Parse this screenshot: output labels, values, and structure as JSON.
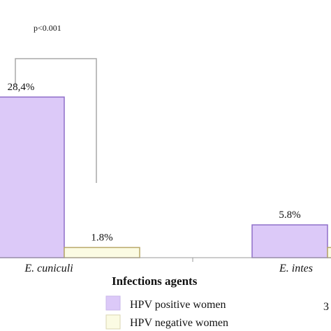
{
  "chart_data": {
    "type": "bar",
    "categories": [
      "E. cuniculi",
      "E. intes"
    ],
    "series": [
      {
        "name": "HPV positive women",
        "values": [
          28.4,
          5.8
        ],
        "labels": [
          "28,4%",
          "5.8%"
        ],
        "color": "#dcc9f8",
        "stroke": "#8f6fc9"
      },
      {
        "name": "HPV negative women",
        "values": [
          1.8,
          1.8
        ],
        "labels": [
          "1.8%",
          ""
        ],
        "color": "#fbfbe3",
        "stroke": "#b8a868"
      }
    ],
    "ylim": [
      0,
      40
    ],
    "annotation": "p<0.001",
    "legend_title": "Infections agents",
    "legend_position": "bottom",
    "axis_color": "#999999",
    "bracket_color": "#a9a9a9"
  },
  "page_number": "3"
}
